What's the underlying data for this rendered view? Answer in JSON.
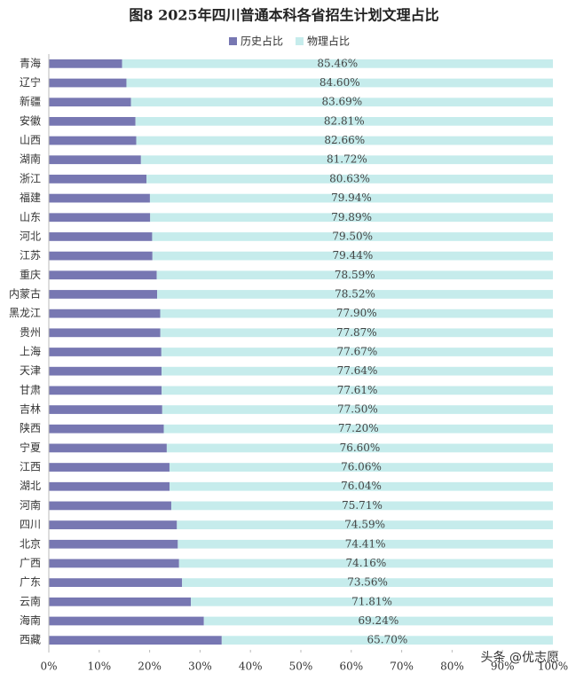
{
  "chart_data": {
    "type": "stacked-barh",
    "title": "图8  2025年四川普通本科各省招生计划文理占比",
    "categories": [
      "青海",
      "辽宁",
      "新疆",
      "安徽",
      "山西",
      "湖南",
      "浙江",
      "福建",
      "山东",
      "河北",
      "江苏",
      "重庆",
      "内蒙古",
      "黑龙江",
      "贵州",
      "上海",
      "天津",
      "甘肃",
      "吉林",
      "陕西",
      "宁夏",
      "江西",
      "湖北",
      "河南",
      "四川",
      "北京",
      "广西",
      "广东",
      "云南",
      "海南",
      "西藏"
    ],
    "series": [
      {
        "name": "历史占比",
        "color": "#7777b2",
        "values": [
          14.54,
          15.4,
          16.31,
          17.19,
          17.34,
          18.28,
          19.37,
          20.06,
          20.11,
          20.5,
          20.56,
          21.41,
          21.48,
          22.1,
          22.13,
          22.33,
          22.36,
          22.39,
          22.5,
          22.8,
          23.4,
          23.94,
          23.96,
          24.29,
          25.41,
          25.59,
          25.84,
          26.44,
          28.19,
          30.76,
          34.3
        ]
      },
      {
        "name": "物理占比",
        "color": "#c6ecec",
        "values": [
          85.46,
          84.6,
          83.69,
          82.81,
          82.66,
          81.72,
          80.63,
          79.94,
          79.89,
          79.5,
          79.44,
          78.59,
          78.52,
          77.9,
          77.87,
          77.67,
          77.64,
          77.61,
          77.5,
          77.2,
          76.6,
          76.06,
          76.04,
          75.71,
          74.59,
          74.41,
          74.16,
          73.56,
          71.81,
          69.24,
          65.7
        ],
        "value_labels": [
          "85.46%",
          "84.60%",
          "83.69%",
          "82.81%",
          "82.66%",
          "81.72%",
          "80.63%",
          "79.94%",
          "79.89%",
          "79.50%",
          "79.44%",
          "78.59%",
          "78.52%",
          "77.90%",
          "77.87%",
          "77.67%",
          "77.64%",
          "77.61%",
          "77.50%",
          "77.20%",
          "76.60%",
          "76.06%",
          "76.04%",
          "75.71%",
          "74.59%",
          "74.41%",
          "74.16%",
          "73.56%",
          "71.81%",
          "69.24%",
          "65.70%"
        ]
      }
    ],
    "xlim": [
      0,
      100
    ],
    "xticks": [
      {
        "value": 0,
        "label": "0%"
      },
      {
        "value": 10,
        "label": "10%"
      },
      {
        "value": 20,
        "label": "20%"
      },
      {
        "value": 30,
        "label": "30%"
      },
      {
        "value": 40,
        "label": "40%"
      },
      {
        "value": 50,
        "label": "50%"
      },
      {
        "value": 60,
        "label": "60%"
      },
      {
        "value": 70,
        "label": "70%"
      },
      {
        "value": 80,
        "label": "80%"
      },
      {
        "value": 90,
        "label": "90%"
      },
      {
        "value": 100,
        "label": "100%"
      }
    ],
    "legend": "top",
    "watermark": "头条 @优志愿"
  }
}
